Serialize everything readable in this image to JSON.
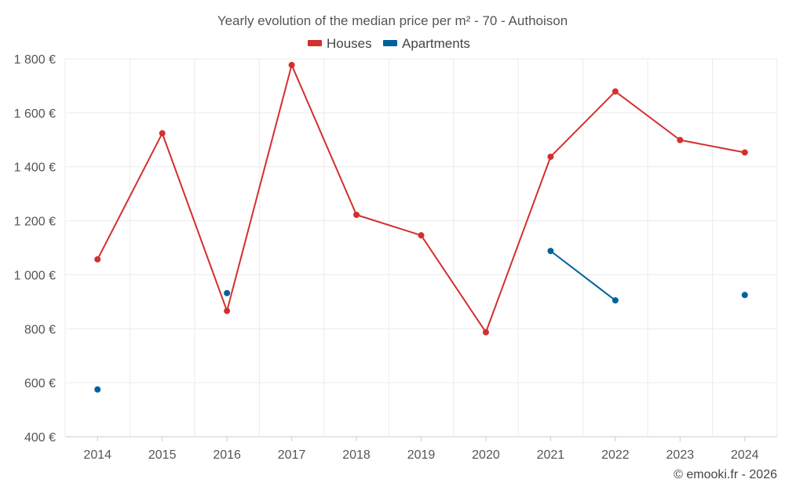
{
  "chart_data": {
    "type": "line",
    "title": "Yearly evolution of the median price per m² - 70 - Authoison",
    "x": [
      "2014",
      "2015",
      "2016",
      "2017",
      "2018",
      "2019",
      "2020",
      "2021",
      "2022",
      "2023",
      "2024"
    ],
    "ylim": [
      400,
      1800
    ],
    "yticks": [
      400,
      600,
      800,
      1000,
      1200,
      1400,
      1600,
      1800
    ],
    "ytick_labels": [
      "400 €",
      "600 €",
      "800 €",
      "1 000 €",
      "1 200 €",
      "1 400 €",
      "1 600 €",
      "1 800 €"
    ],
    "grid": true,
    "legend_position": "top-center",
    "series": [
      {
        "name": "Houses",
        "color": "#d32f2f",
        "values": [
          1057,
          1524,
          866,
          1777,
          1222,
          1146,
          787,
          1437,
          1679,
          1499,
          1453
        ]
      },
      {
        "name": "Apartments",
        "color": "#00629b",
        "values": [
          575,
          null,
          932,
          null,
          null,
          null,
          null,
          1088,
          905,
          null,
          925
        ]
      }
    ],
    "credit": "© emooki.fr - 2026"
  }
}
